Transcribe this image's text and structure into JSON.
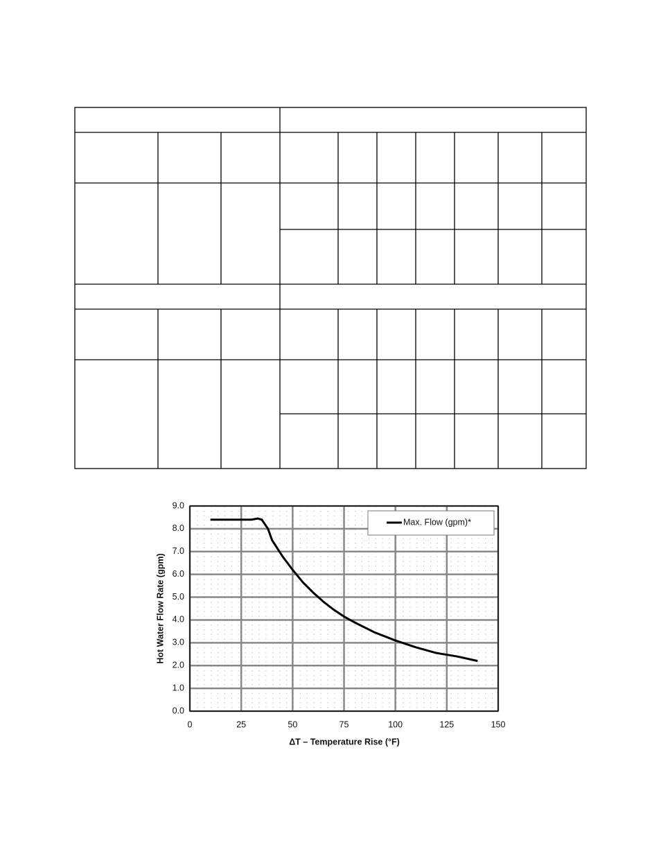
{
  "chart_data": {
    "type": "line",
    "x_label": "ΔT – Temperature Rise (°F)",
    "y_label": "Hot Water Flow Rate (gpm)",
    "series": [
      {
        "name": "Max. Flow (gpm)*",
        "color": "#000000",
        "x": [
          10,
          20,
          30,
          33,
          35,
          38,
          40,
          45,
          50,
          55,
          60,
          65,
          70,
          75,
          80,
          90,
          100,
          110,
          120,
          130,
          140
        ],
        "values": [
          8.4,
          8.4,
          8.4,
          8.45,
          8.4,
          8.0,
          7.5,
          6.8,
          6.2,
          5.65,
          5.2,
          4.8,
          4.45,
          4.15,
          3.9,
          3.45,
          3.1,
          2.8,
          2.55,
          2.4,
          2.2
        ]
      }
    ],
    "xlim": [
      0,
      150
    ],
    "xticks": [
      0,
      25,
      50,
      75,
      100,
      125,
      150
    ],
    "ylim": [
      0,
      9
    ],
    "yticks": [
      {
        "value": 0,
        "label": "0.0"
      },
      {
        "value": 1,
        "label": "1.0"
      },
      {
        "value": 2,
        "label": "2.0"
      },
      {
        "value": 3,
        "label": "3.0"
      },
      {
        "value": 4,
        "label": "4.0"
      },
      {
        "value": 5,
        "label": "5.0"
      },
      {
        "value": 6,
        "label": "6.0"
      },
      {
        "value": 7,
        "label": "7.0"
      },
      {
        "value": 8,
        "label": "8.0"
      },
      {
        "value": 9,
        "label": "9.0"
      }
    ],
    "grid": true,
    "legend": "top-right"
  }
}
